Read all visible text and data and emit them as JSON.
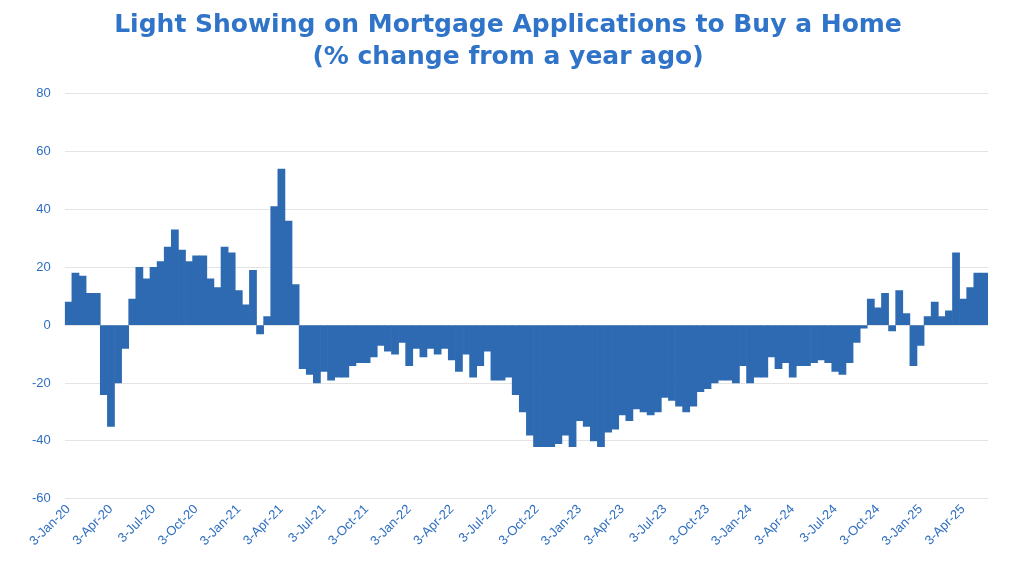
{
  "chart_data": {
    "type": "bar",
    "title": "Light Showing on Mortgage Applications to Buy a Home",
    "subtitle": "(% change from a year ago)",
    "categories": [
      "3-Jan-20",
      null,
      null,
      null,
      null,
      null,
      "3-Apr-20",
      null,
      null,
      null,
      null,
      null,
      "3-Jul-20",
      null,
      null,
      null,
      null,
      null,
      "3-Oct-20",
      null,
      null,
      null,
      null,
      null,
      "3-Jan-21",
      null,
      null,
      null,
      null,
      null,
      "3-Apr-21",
      null,
      null,
      null,
      null,
      null,
      "3-Jul-21",
      null,
      null,
      null,
      null,
      null,
      "3-Oct-21",
      null,
      null,
      null,
      null,
      null,
      "3-Jan-22",
      null,
      null,
      null,
      null,
      null,
      "3-Apr-22",
      null,
      null,
      null,
      null,
      null,
      "3-Jul-22",
      null,
      null,
      null,
      null,
      null,
      "3-Oct-22",
      null,
      null,
      null,
      null,
      null,
      "3-Jan-23",
      null,
      null,
      null,
      null,
      null,
      "3-Apr-23",
      null,
      null,
      null,
      null,
      null,
      "3-Jul-23",
      null,
      null,
      null,
      null,
      null,
      "3-Oct-23",
      null,
      null,
      null,
      null,
      null,
      "3-Jan-24",
      null,
      null,
      null,
      null,
      null,
      "3-Apr-24",
      null,
      null,
      null,
      null,
      null,
      "3-Jul-24",
      null,
      null,
      null,
      null,
      null,
      "3-Oct-24",
      null,
      null,
      null,
      null,
      null,
      "3-Jan-25",
      null,
      null,
      null,
      null,
      null,
      "3-Apr-25",
      null,
      null,
      null
    ],
    "values": [
      8,
      18,
      17,
      11,
      11,
      -24,
      -35,
      -20,
      -8,
      9,
      20,
      16,
      20,
      22,
      27,
      33,
      26,
      22,
      24,
      24,
      16,
      13,
      27,
      25,
      12,
      7,
      19,
      -3,
      3,
      41,
      54,
      36,
      14,
      -15,
      -17,
      -20,
      -16,
      -19,
      -18,
      -18,
      -14,
      -13,
      -13,
      -11,
      -7,
      -9,
      -10,
      -6,
      -14,
      -8,
      -11,
      -8,
      -10,
      -8,
      -12,
      -16,
      -10,
      -18,
      -14,
      -9,
      -19,
      -19,
      -18,
      -24,
      -30,
      -38,
      -42,
      -42,
      -42,
      -41,
      -38,
      -42,
      -33,
      -35,
      -40,
      -42,
      -37,
      -36,
      -31,
      -33,
      -29,
      -30,
      -31,
      -30,
      -25,
      -26,
      -28,
      -30,
      -28,
      -23,
      -22,
      -20,
      -19,
      -19,
      -20,
      -14,
      -20,
      -18,
      -18,
      -11,
      -15,
      -13,
      -18,
      -14,
      -14,
      -13,
      -12,
      -13,
      -16,
      -17,
      -13,
      -6,
      -1,
      9,
      6,
      11,
      -2,
      12,
      4,
      -14,
      -7,
      3,
      8,
      3,
      5,
      25,
      9,
      13,
      18,
      18
    ],
    "color": "#2e6ab1",
    "ylim": [
      -60,
      80
    ],
    "yticks": [
      -60,
      -40,
      -20,
      0,
      20,
      40,
      60,
      80
    ],
    "grid": "y",
    "legend": false
  }
}
